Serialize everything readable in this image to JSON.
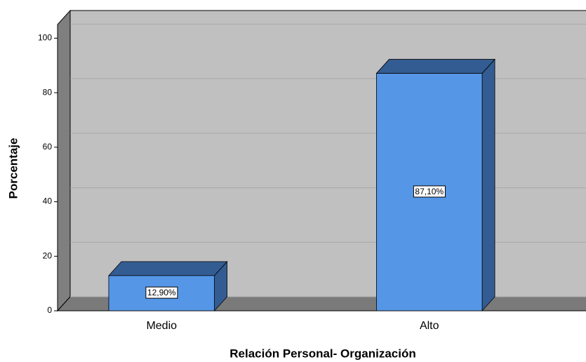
{
  "chart_data": {
    "type": "bar3d",
    "x_label": "Relación Personal- Organización",
    "y_label": "Porcentaje",
    "categories": [
      "Medio",
      "Alto"
    ],
    "values": [
      12.9,
      87.1
    ],
    "value_labels": [
      "12,90%",
      "87,10%"
    ],
    "color": "#5596e6",
    "ylim": [
      0,
      105
    ],
    "yticks": [
      0,
      20,
      40,
      60,
      80,
      100
    ],
    "grid": true
  }
}
